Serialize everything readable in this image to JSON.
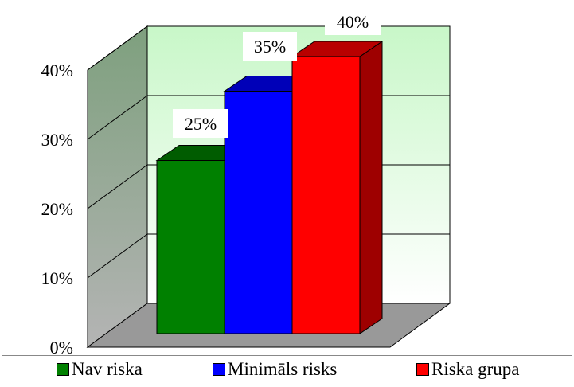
{
  "chart_data": {
    "type": "bar",
    "style": "3d-clustered",
    "categories": [
      "Nav riska",
      "Minimāls risks",
      "Riska grupa"
    ],
    "values": [
      25,
      35,
      40
    ],
    "value_labels": [
      "25%",
      "35%",
      "40%"
    ],
    "colors": [
      "#008000",
      "#0000ff",
      "#ff0000"
    ],
    "ylim": [
      0,
      40
    ],
    "y_ticks": [
      "0%",
      "10%",
      "20%",
      "30%",
      "40%"
    ],
    "grid": true,
    "legend_position": "bottom",
    "legend": [
      {
        "label": "Nav riska",
        "color": "#008000"
      },
      {
        "label": "Minimāls risks",
        "color": "#0000ff"
      },
      {
        "label": "Riska grupa",
        "color": "#ff0000"
      }
    ]
  }
}
